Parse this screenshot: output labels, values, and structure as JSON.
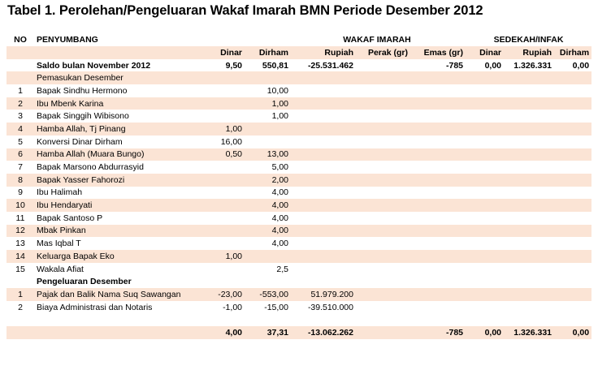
{
  "title": "Tabel 1. Perolehan/Pengeluaran Wakaf Imarah BMN Periode Desember 2012",
  "header": {
    "no": "NO",
    "penyumbang": "PENYUMBANG",
    "wakaf": "WAKAF IMARAH",
    "sedekah": "SEDEKAH/INFAK",
    "dinar": "Dinar",
    "dirham": "Dirham",
    "rupiah": "Rupiah",
    "perak": "Perak (gr)",
    "emas": "Emas (gr)",
    "s_dinar": "Dinar",
    "s_rupiah": "Rupiah",
    "s_dirham": "Dirham"
  },
  "saldo": {
    "label": "Saldo bulan November 2012",
    "dinar": "9,50",
    "dirham": "550,81",
    "rupiah": "-25.531.462",
    "perak": "",
    "emas": "-785",
    "s_dinar": "0,00",
    "s_rupiah": "1.326.331",
    "s_dirham": "0,00"
  },
  "pemasukan_label": "Pemasukan Desember",
  "pemasukan": [
    {
      "no": "1",
      "name": "Bapak Sindhu Hermono",
      "dinar": "",
      "dirham": "10,00"
    },
    {
      "no": "2",
      "name": "Ibu Mbenk Karina",
      "dinar": "",
      "dirham": "1,00"
    },
    {
      "no": "3",
      "name": "Bapak Singgih Wibisono",
      "dinar": "",
      "dirham": "1,00"
    },
    {
      "no": "4",
      "name": "Hamba Allah, Tj Pinang",
      "dinar": "1,00",
      "dirham": ""
    },
    {
      "no": "5",
      "name": "Konversi Dinar Dirham",
      "dinar": "16,00",
      "dirham": ""
    },
    {
      "no": "6",
      "name": "Hamba Allah (Muara Bungo)",
      "dinar": "0,50",
      "dirham": "13,00"
    },
    {
      "no": "7",
      "name": "Bapak Marsono Abdurrasyid",
      "dinar": "",
      "dirham": "5,00"
    },
    {
      "no": "8",
      "name": "Bapak Yasser Fahorozi",
      "dinar": "",
      "dirham": "2,00"
    },
    {
      "no": "9",
      "name": "Ibu Halimah",
      "dinar": "",
      "dirham": "4,00"
    },
    {
      "no": "10",
      "name": "Ibu Hendaryati",
      "dinar": "",
      "dirham": "4,00"
    },
    {
      "no": "11",
      "name": "Bapak Santoso P",
      "dinar": "",
      "dirham": "4,00"
    },
    {
      "no": "12",
      "name": "Mbak Pinkan",
      "dinar": "",
      "dirham": "4,00"
    },
    {
      "no": "13",
      "name": "Mas Iqbal T",
      "dinar": "",
      "dirham": "4,00"
    },
    {
      "no": "14",
      "name": "Keluarga Bapak Eko",
      "dinar": "1,00",
      "dirham": ""
    },
    {
      "no": "15",
      "name": "Wakala Afiat",
      "dinar": "",
      "dirham": "2,5"
    }
  ],
  "pengeluaran_label": "Pengeluaran Desember",
  "pengeluaran": [
    {
      "no": "1",
      "name": "Pajak dan Balik Nama Suq Sawangan",
      "dinar": "-23,00",
      "dirham": "-553,00",
      "rupiah": "51.979.200"
    },
    {
      "no": "2",
      "name": "Biaya Administrasi dan Notaris",
      "dinar": "-1,00",
      "dirham": "-15,00",
      "rupiah": "-39.510.000"
    }
  ],
  "total": {
    "dinar": "4,00",
    "dirham": "37,31",
    "rupiah": "-13.062.262",
    "emas": "-785",
    "s_dinar": "0,00",
    "s_rupiah": "1.326.331",
    "s_dirham": "0,00"
  }
}
